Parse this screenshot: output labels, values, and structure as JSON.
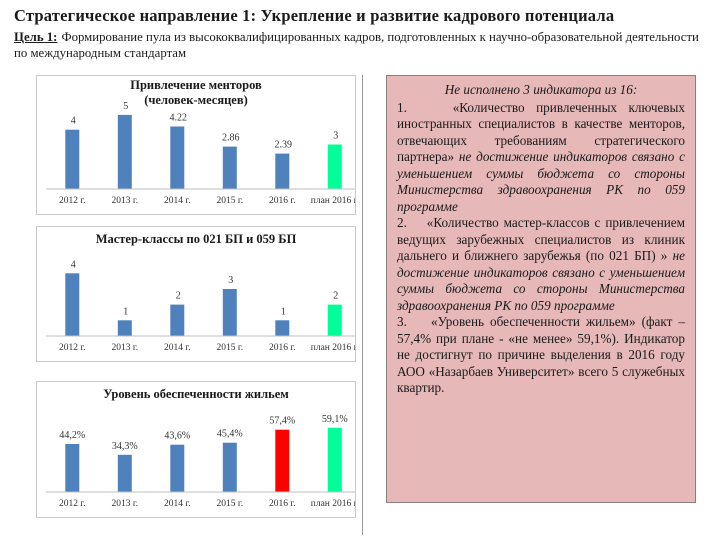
{
  "header": {
    "title": "Стратегическое направление 1: Укрепление и развитие кадрового потенциала",
    "goal_label": "Цель 1:",
    "goal_text": "Формирование пула из высококвалифицированных кадров, подготовленных к научно-образовательной деятельности по международным стандартам"
  },
  "chart_data": [
    {
      "type": "bar",
      "title": "Привлечение менторов (человек-месяцев)",
      "categories": [
        "2012 г.",
        "2013 г.",
        "2014 г.",
        "2015 г.",
        "2016 г.",
        "план 2016 г."
      ],
      "values": [
        4,
        5,
        4.22,
        2.86,
        2.39,
        3
      ],
      "labels": [
        "4",
        "5",
        "4.22",
        "2.86",
        "2.39",
        "3"
      ],
      "colors": [
        "#4f81bd",
        "#4f81bd",
        "#4f81bd",
        "#4f81bd",
        "#4f81bd",
        "#00ff99"
      ],
      "ylim": [
        0,
        5.6
      ]
    },
    {
      "type": "bar",
      "title": "Мастер-классы по 021 БП и 059 БП",
      "categories": [
        "2012 г.",
        "2013 г.",
        "2014 г.",
        "2015 г.",
        "2016 г.",
        "план 2016 г."
      ],
      "values": [
        4,
        1,
        2,
        3,
        1,
        2
      ],
      "labels": [
        "4",
        "1",
        "2",
        "3",
        "1",
        "2"
      ],
      "colors": [
        "#4f81bd",
        "#4f81bd",
        "#4f81bd",
        "#4f81bd",
        "#4f81bd",
        "#00ff99"
      ],
      "ylim": [
        0,
        4.4
      ]
    },
    {
      "type": "bar",
      "title": "Уровень обеспеченности жильем",
      "categories": [
        "2012 г.",
        "2013 г.",
        "2014 г.",
        "2015 г.",
        "2016 г.",
        "план 2016 г."
      ],
      "values": [
        44.2,
        34.3,
        43.6,
        45.4,
        57.4,
        59.1
      ],
      "labels": [
        "44,2%",
        "34,3%",
        "43,6%",
        "45,4%",
        "57,4%",
        "59,1%"
      ],
      "colors": [
        "#4f81bd",
        "#4f81bd",
        "#4f81bd",
        "#4f81bd",
        "#ff0000",
        "#00ff99"
      ],
      "ylim": [
        0,
        70
      ]
    }
  ],
  "note": {
    "heading": "Не исполнено 3 индикатора из 16:",
    "items": [
      {
        "num": "1.",
        "text": "«Количество привлеченных ключевых иностранных специалистов в качестве менторов, отвечающих требованиям стратегического партнера»",
        "note": "не достижение индикаторов связано с уменьшением суммы бюджета со стороны Министерства здравоохранения РК по 059 программе"
      },
      {
        "num": "2.",
        "text": "«Количество мастер-классов с привлечением ведущих зарубежных специалистов из клиник дальнего и ближнего зарубежья (по 021 БП) »",
        "note": "не достижение индикаторов связано с уменьшением суммы бюджета со стороны Министерства здравоохранения РК по 059 программе"
      },
      {
        "num": "3.",
        "text": "«Уровень обеспеченности жильем» (факт – 57,4% при плане - «не менее» 59,1%). Индикатор не достигнут по причине выделения в 2016 году АОО «Назарбаев Университет» всего 5 служебных квартир."
      }
    ]
  }
}
